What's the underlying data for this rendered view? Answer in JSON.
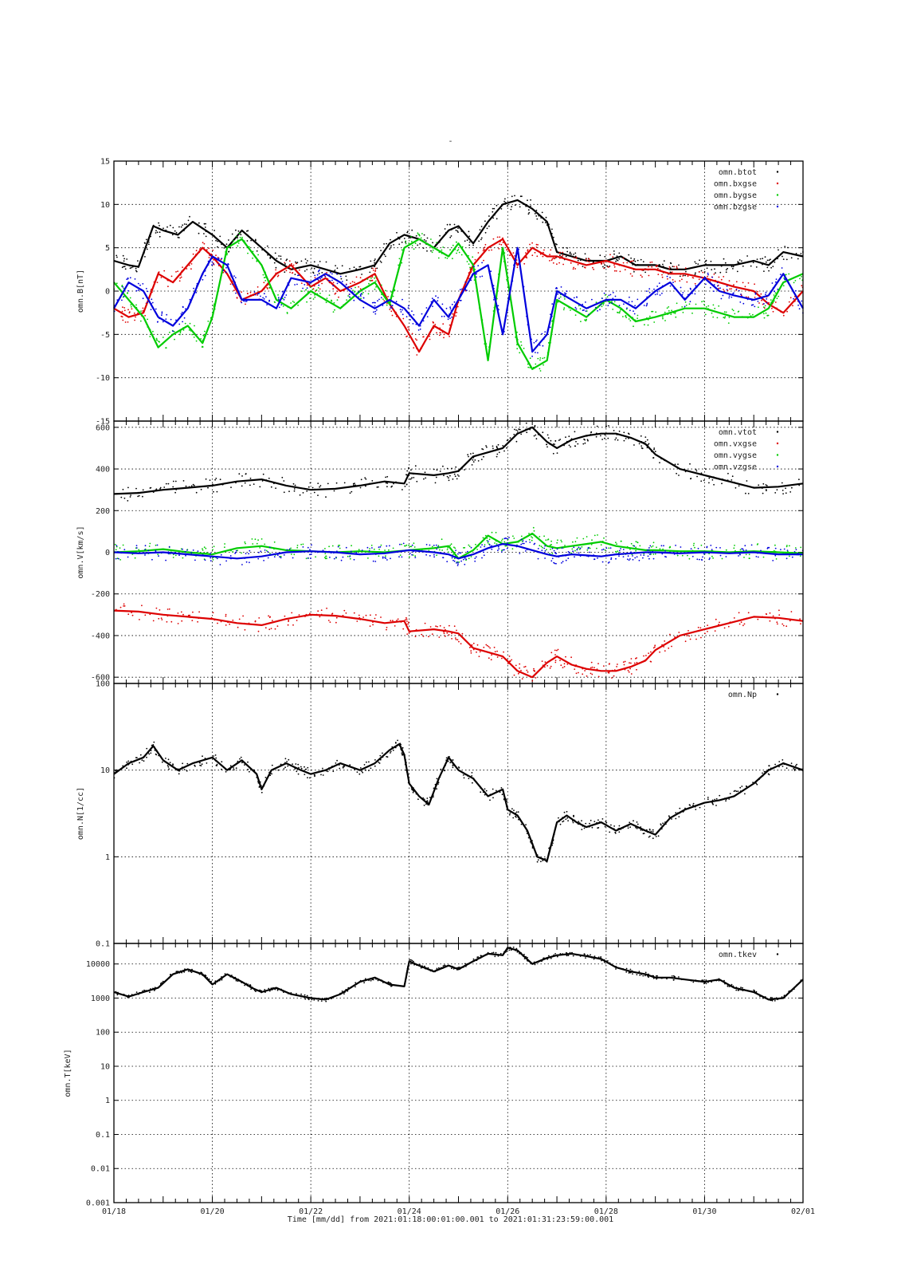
{
  "figure": {
    "title": "-",
    "xlabel": "Time [mm/dd]  from 2021:01:18:00:01:00.001  to  2021:01:31:23:59:00.001",
    "x_tick_labels": [
      "01/18",
      "01/20",
      "01/22",
      "01/24",
      "01/26",
      "01/28",
      "01/30",
      "02/01"
    ],
    "colors": {
      "black": "#000000",
      "red": "#dd0000",
      "green": "#00cc00",
      "blue": "#0000dd"
    }
  },
  "chart_data": [
    {
      "type": "scatter",
      "ylabel": "omn.B[nT]",
      "xlim": [
        0,
        14
      ],
      "ylim": [
        -15,
        15
      ],
      "y_scale": "linear",
      "y_ticks": [
        -15,
        -10,
        -5,
        0,
        5,
        10,
        15
      ],
      "grid": true,
      "legend_position": "top-right",
      "series": [
        {
          "name": "omn.btot",
          "color": "#000000",
          "x": [
            0.0,
            0.3,
            0.5,
            0.8,
            1.0,
            1.3,
            1.6,
            2.0,
            2.3,
            2.6,
            3.0,
            3.3,
            3.6,
            4.0,
            4.3,
            4.6,
            5.0,
            5.3,
            5.6,
            5.9,
            6.2,
            6.5,
            6.8,
            7.0,
            7.3,
            7.6,
            7.9,
            8.2,
            8.5,
            8.8,
            9.0,
            9.3,
            9.6,
            10.0,
            10.3,
            10.6,
            11.0,
            11.3,
            11.6,
            12.0,
            12.3,
            12.6,
            13.0,
            13.3,
            13.6,
            14.0
          ],
          "y": [
            3.5,
            3.0,
            2.8,
            7.5,
            7.0,
            6.5,
            8.0,
            6.5,
            5.0,
            7.0,
            5.0,
            3.5,
            2.5,
            3.0,
            2.5,
            2.0,
            2.5,
            3.0,
            5.5,
            6.5,
            6.0,
            5.0,
            7.0,
            7.5,
            5.5,
            8.0,
            10.0,
            10.5,
            9.5,
            8.0,
            4.5,
            4.0,
            3.5,
            3.5,
            4.0,
            3.0,
            3.0,
            2.5,
            2.5,
            3.0,
            3.0,
            3.0,
            3.5,
            3.0,
            4.5,
            4.0
          ]
        },
        {
          "name": "omn.bxgse",
          "color": "#dd0000",
          "x": [
            0.0,
            0.3,
            0.6,
            0.9,
            1.2,
            1.5,
            1.8,
            2.0,
            2.3,
            2.6,
            3.0,
            3.3,
            3.6,
            4.0,
            4.3,
            4.6,
            5.0,
            5.3,
            5.6,
            5.9,
            6.2,
            6.5,
            6.8,
            7.0,
            7.3,
            7.6,
            7.9,
            8.2,
            8.5,
            8.8,
            9.0,
            9.3,
            9.6,
            10.0,
            10.3,
            10.6,
            11.0,
            11.3,
            11.6,
            12.0,
            12.3,
            12.6,
            13.0,
            13.3,
            13.6,
            14.0
          ],
          "y": [
            -2.0,
            -3.0,
            -2.5,
            2.0,
            1.0,
            3.0,
            5.0,
            4.0,
            2.0,
            -1.0,
            0.0,
            2.0,
            3.0,
            0.5,
            1.5,
            0.0,
            1.0,
            2.0,
            -1.5,
            -4.0,
            -7.0,
            -4.0,
            -5.0,
            -1.0,
            3.0,
            5.0,
            6.0,
            3.0,
            5.0,
            4.0,
            4.0,
            3.5,
            3.0,
            3.5,
            3.0,
            2.5,
            2.5,
            2.0,
            2.0,
            1.5,
            1.0,
            0.5,
            0.0,
            -1.5,
            -2.5,
            0.0
          ]
        },
        {
          "name": "omn.bygse",
          "color": "#00cc00",
          "x": [
            0.0,
            0.3,
            0.6,
            0.9,
            1.2,
            1.5,
            1.8,
            2.0,
            2.3,
            2.6,
            3.0,
            3.3,
            3.6,
            4.0,
            4.3,
            4.6,
            5.0,
            5.3,
            5.6,
            5.9,
            6.2,
            6.5,
            6.8,
            7.0,
            7.3,
            7.6,
            7.9,
            8.2,
            8.5,
            8.8,
            9.0,
            9.3,
            9.6,
            10.0,
            10.3,
            10.6,
            11.0,
            11.3,
            11.6,
            12.0,
            12.3,
            12.6,
            13.0,
            13.3,
            13.6,
            14.0
          ],
          "y": [
            1.0,
            -1.0,
            -3.0,
            -6.5,
            -5.0,
            -4.0,
            -6.0,
            -3.0,
            5.0,
            6.0,
            3.0,
            -1.0,
            -2.0,
            0.0,
            -1.0,
            -2.0,
            0.0,
            1.0,
            -1.5,
            5.0,
            6.0,
            5.0,
            4.0,
            5.5,
            3.0,
            -8.0,
            5.0,
            -6.0,
            -9.0,
            -8.0,
            -1.0,
            -2.0,
            -3.0,
            -1.0,
            -2.0,
            -3.5,
            -3.0,
            -2.5,
            -2.0,
            -2.0,
            -2.5,
            -3.0,
            -3.0,
            -2.0,
            1.0,
            2.0
          ]
        },
        {
          "name": "omn.bzgse",
          "color": "#0000dd",
          "x": [
            0.0,
            0.3,
            0.6,
            0.9,
            1.2,
            1.5,
            1.8,
            2.0,
            2.3,
            2.6,
            3.0,
            3.3,
            3.6,
            4.0,
            4.3,
            4.6,
            5.0,
            5.3,
            5.6,
            5.9,
            6.2,
            6.5,
            6.8,
            7.0,
            7.3,
            7.6,
            7.9,
            8.2,
            8.5,
            8.8,
            9.0,
            9.3,
            9.6,
            10.0,
            10.3,
            10.6,
            11.0,
            11.3,
            11.6,
            12.0,
            12.3,
            12.6,
            13.0,
            13.3,
            13.6,
            14.0
          ],
          "y": [
            -2.0,
            1.0,
            0.0,
            -3.0,
            -4.0,
            -2.0,
            2.0,
            4.0,
            3.0,
            -1.0,
            -1.0,
            -2.0,
            1.5,
            1.0,
            2.0,
            1.0,
            -1.0,
            -2.0,
            -1.0,
            -2.0,
            -4.0,
            -1.0,
            -3.0,
            -1.0,
            2.0,
            3.0,
            -5.0,
            5.0,
            -7.0,
            -5.0,
            0.0,
            -1.0,
            -2.0,
            -1.0,
            -1.0,
            -2.0,
            0.0,
            1.0,
            -1.0,
            1.5,
            0.0,
            -0.5,
            -1.0,
            -0.5,
            2.0,
            -2.0
          ]
        }
      ]
    },
    {
      "type": "scatter",
      "ylabel": "omn.V[km/s]",
      "xlim": [
        0,
        14
      ],
      "ylim": [
        -630,
        630
      ],
      "y_scale": "linear",
      "y_ticks": [
        -600,
        -400,
        -200,
        0,
        200,
        400,
        600
      ],
      "grid": true,
      "legend_position": "top-right",
      "series": [
        {
          "name": "omn.vtot",
          "color": "#000000",
          "x": [
            0.0,
            0.5,
            1.0,
            1.5,
            2.0,
            2.5,
            3.0,
            3.5,
            4.0,
            4.5,
            5.0,
            5.5,
            5.9,
            6.0,
            6.5,
            6.8,
            7.0,
            7.3,
            7.6,
            7.9,
            8.2,
            8.5,
            8.8,
            9.0,
            9.3,
            9.6,
            9.9,
            10.2,
            10.5,
            10.8,
            11.0,
            11.5,
            12.0,
            12.5,
            13.0,
            13.5,
            14.0
          ],
          "y": [
            280,
            285,
            300,
            310,
            320,
            340,
            350,
            320,
            300,
            305,
            320,
            340,
            330,
            380,
            370,
            380,
            390,
            460,
            480,
            500,
            570,
            600,
            530,
            500,
            540,
            560,
            570,
            570,
            550,
            520,
            470,
            400,
            370,
            340,
            310,
            315,
            330
          ]
        },
        {
          "name": "omn.vxgse",
          "color": "#dd0000",
          "x": [
            0.0,
            0.5,
            1.0,
            1.5,
            2.0,
            2.5,
            3.0,
            3.5,
            4.0,
            4.5,
            5.0,
            5.5,
            5.9,
            6.0,
            6.5,
            6.8,
            7.0,
            7.3,
            7.6,
            7.9,
            8.2,
            8.5,
            8.8,
            9.0,
            9.3,
            9.6,
            9.9,
            10.2,
            10.5,
            10.8,
            11.0,
            11.5,
            12.0,
            12.5,
            13.0,
            13.5,
            14.0
          ],
          "y": [
            -280,
            -285,
            -300,
            -310,
            -320,
            -340,
            -350,
            -320,
            -300,
            -305,
            -320,
            -340,
            -330,
            -380,
            -370,
            -380,
            -390,
            -460,
            -480,
            -500,
            -570,
            -600,
            -530,
            -500,
            -540,
            -560,
            -570,
            -570,
            -550,
            -520,
            -470,
            -400,
            -370,
            -340,
            -310,
            -315,
            -330
          ]
        },
        {
          "name": "omn.vygse",
          "color": "#00cc00",
          "x": [
            0.0,
            0.5,
            1.0,
            1.5,
            2.0,
            2.5,
            3.0,
            3.5,
            4.0,
            4.5,
            5.0,
            5.5,
            6.0,
            6.5,
            6.8,
            7.0,
            7.3,
            7.6,
            7.9,
            8.2,
            8.5,
            8.8,
            9.0,
            9.3,
            9.6,
            9.9,
            10.2,
            10.5,
            10.8,
            11.0,
            11.5,
            12.0,
            12.5,
            13.0,
            13.5,
            14.0
          ],
          "y": [
            0,
            5,
            15,
            0,
            -10,
            20,
            30,
            10,
            5,
            0,
            5,
            0,
            10,
            20,
            30,
            -30,
            10,
            80,
            40,
            50,
            90,
            30,
            20,
            30,
            40,
            50,
            30,
            20,
            10,
            10,
            5,
            5,
            0,
            5,
            0,
            -5
          ]
        },
        {
          "name": "omn.vzgse",
          "color": "#0000dd",
          "x": [
            0.0,
            0.5,
            1.0,
            1.5,
            2.0,
            2.5,
            3.0,
            3.5,
            4.0,
            4.5,
            5.0,
            5.5,
            6.0,
            6.5,
            6.8,
            7.0,
            7.3,
            7.6,
            7.9,
            8.2,
            8.5,
            8.8,
            9.0,
            9.3,
            9.6,
            9.9,
            10.2,
            10.5,
            10.8,
            11.0,
            11.5,
            12.0,
            12.5,
            13.0,
            13.5,
            14.0
          ],
          "y": [
            0,
            -5,
            0,
            -10,
            -20,
            -30,
            -20,
            0,
            5,
            0,
            -10,
            -5,
            10,
            0,
            -10,
            -30,
            -10,
            20,
            40,
            30,
            10,
            -10,
            -20,
            -10,
            -15,
            -20,
            -10,
            -5,
            0,
            0,
            -5,
            0,
            -5,
            0,
            -10,
            -10
          ]
        }
      ]
    },
    {
      "type": "scatter",
      "ylabel": "omn.N[1/cc]",
      "xlim": [
        0,
        14
      ],
      "ylim": [
        0.1,
        100
      ],
      "y_scale": "log",
      "y_ticks": [
        0.1,
        1,
        10,
        100
      ],
      "grid": true,
      "legend_position": "top-right",
      "series": [
        {
          "name": "omn.Np",
          "color": "#000000",
          "x": [
            0.0,
            0.3,
            0.6,
            0.8,
            1.0,
            1.3,
            1.6,
            2.0,
            2.3,
            2.6,
            2.9,
            3.0,
            3.2,
            3.5,
            3.8,
            4.0,
            4.3,
            4.6,
            5.0,
            5.3,
            5.6,
            5.8,
            5.9,
            6.0,
            6.2,
            6.4,
            6.6,
            6.8,
            7.0,
            7.3,
            7.6,
            7.9,
            8.0,
            8.2,
            8.4,
            8.6,
            8.8,
            9.0,
            9.2,
            9.4,
            9.6,
            9.9,
            10.2,
            10.5,
            10.8,
            11.0,
            11.3,
            11.6,
            12.0,
            12.3,
            12.6,
            13.0,
            13.3,
            13.6,
            14.0
          ],
          "y": [
            9,
            12,
            14,
            19,
            13,
            10,
            12,
            14,
            10,
            13,
            9,
            6,
            10,
            12,
            10,
            9,
            10,
            12,
            10,
            12,
            17,
            20,
            15,
            7,
            5,
            4,
            8,
            14,
            10,
            8,
            5,
            6,
            3.5,
            3.0,
            2.0,
            1.0,
            0.9,
            2.5,
            3.0,
            2.5,
            2.2,
            2.5,
            2.0,
            2.4,
            2.0,
            1.8,
            2.8,
            3.5,
            4.2,
            4.5,
            5.0,
            7.0,
            10,
            12,
            10
          ]
        }
      ]
    },
    {
      "type": "scatter",
      "ylabel": "omn.T[keV]",
      "xlim": [
        0,
        14
      ],
      "ylim": [
        0.001,
        40000
      ],
      "y_scale": "log",
      "y_ticks": [
        0.001,
        0.01,
        0.1,
        1,
        10,
        100,
        1000,
        10000
      ],
      "grid": true,
      "legend_position": "top-right",
      "series": [
        {
          "name": "omn.tkev",
          "color": "#000000",
          "x": [
            0.0,
            0.3,
            0.6,
            0.9,
            1.2,
            1.5,
            1.8,
            2.0,
            2.3,
            2.6,
            2.8,
            3.0,
            3.3,
            3.6,
            4.0,
            4.3,
            4.6,
            5.0,
            5.3,
            5.6,
            5.9,
            6.0,
            6.2,
            6.5,
            6.8,
            7.0,
            7.3,
            7.6,
            7.9,
            8.0,
            8.2,
            8.5,
            8.8,
            9.0,
            9.3,
            9.6,
            9.9,
            10.2,
            10.5,
            10.8,
            11.0,
            11.3,
            11.6,
            12.0,
            12.3,
            12.6,
            13.0,
            13.3,
            13.6,
            14.0
          ],
          "y": [
            1500,
            1100,
            1500,
            2000,
            5000,
            7000,
            5000,
            2500,
            5000,
            3000,
            2000,
            1500,
            2000,
            1300,
            1000,
            900,
            1300,
            3000,
            4000,
            2500,
            2200,
            12000,
            9000,
            6000,
            9000,
            7000,
            12000,
            20000,
            18000,
            30000,
            25000,
            10000,
            15000,
            18000,
            20000,
            17000,
            14000,
            8000,
            6000,
            5000,
            4000,
            4000,
            3500,
            3000,
            3500,
            2000,
            1500,
            900,
            1000,
            3500
          ]
        }
      ]
    }
  ]
}
